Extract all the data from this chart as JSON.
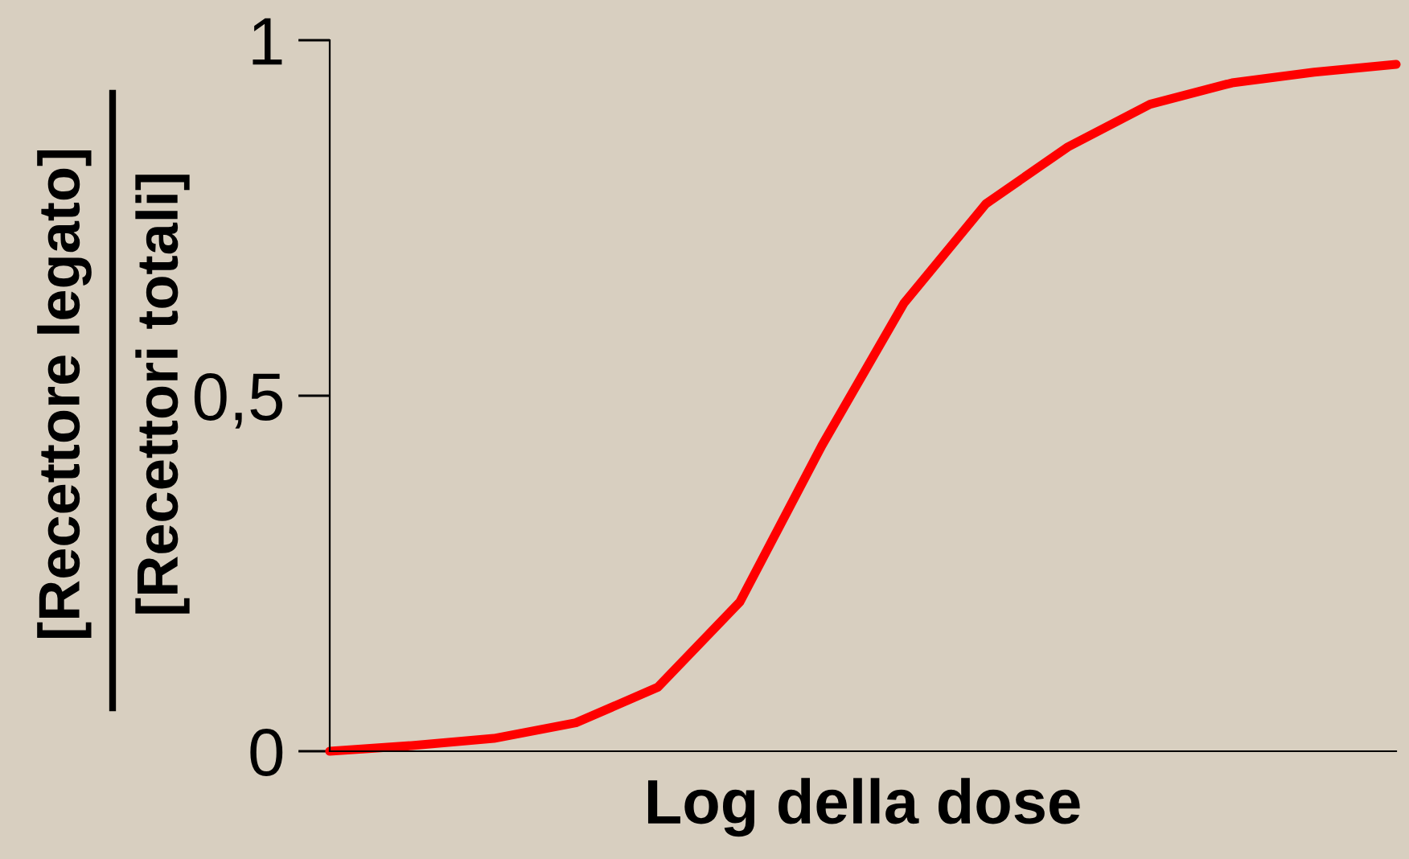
{
  "chart_data": {
    "type": "line",
    "xlabel": "Log della dose",
    "ylabel": [
      "[Recettore legato]",
      "[Recettori totali]"
    ],
    "categories": [
      null,
      null,
      null,
      null,
      null,
      null,
      null,
      null,
      null,
      null,
      null,
      null,
      null,
      null
    ],
    "series": [
      {
        "color": "#ff0000",
        "values": [
          0,
          0.008,
          0.018,
          0.04,
          0.09,
          0.21,
          0.43,
          0.63,
          0.77,
          0.85,
          0.91,
          0.94,
          0.955,
          0.966
        ]
      }
    ],
    "ylim": [
      0,
      1
    ],
    "yticks": [
      0,
      {
        "value": 0.5,
        "label": "0,5"
      },
      1
    ],
    "tick_labels": "y",
    "grid": false,
    "legend": false,
    "marker": "none",
    "line_style": "solid"
  }
}
